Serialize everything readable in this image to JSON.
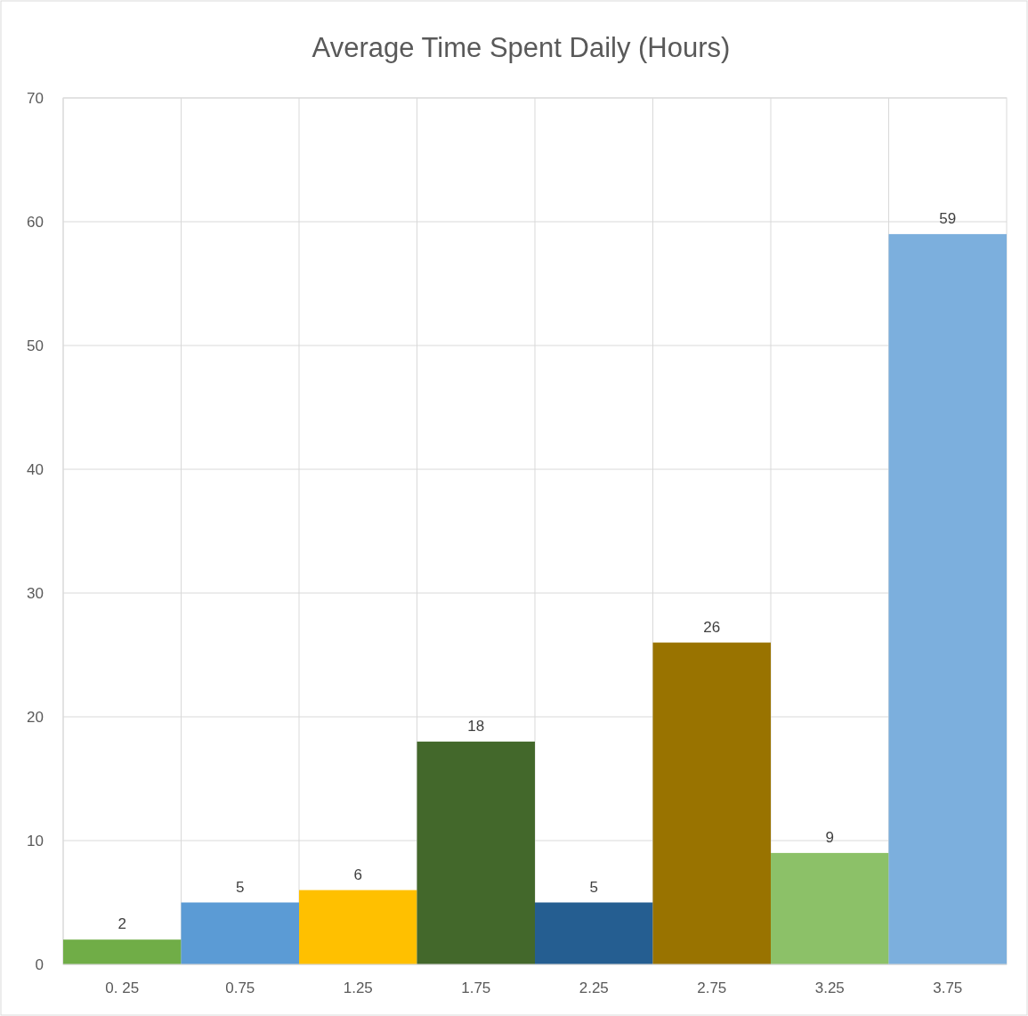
{
  "chart_data": {
    "type": "bar",
    "title": "Average Time Spent Daily (Hours)",
    "categories": [
      "0. 25",
      "0.75",
      "1.25",
      "1.75",
      "2.25",
      "2.75",
      "3.25",
      "3.75"
    ],
    "values": [
      2,
      5,
      6,
      18,
      5,
      26,
      9,
      59
    ],
    "colors": [
      "#70ad47",
      "#5b9bd5",
      "#ffc000",
      "#43682b",
      "#255e91",
      "#997300",
      "#8cc168",
      "#7cafdd"
    ],
    "ylim": [
      0,
      70
    ],
    "yticks": [
      0,
      10,
      20,
      30,
      40,
      50,
      60,
      70
    ],
    "grid": true,
    "data_labels": true
  }
}
